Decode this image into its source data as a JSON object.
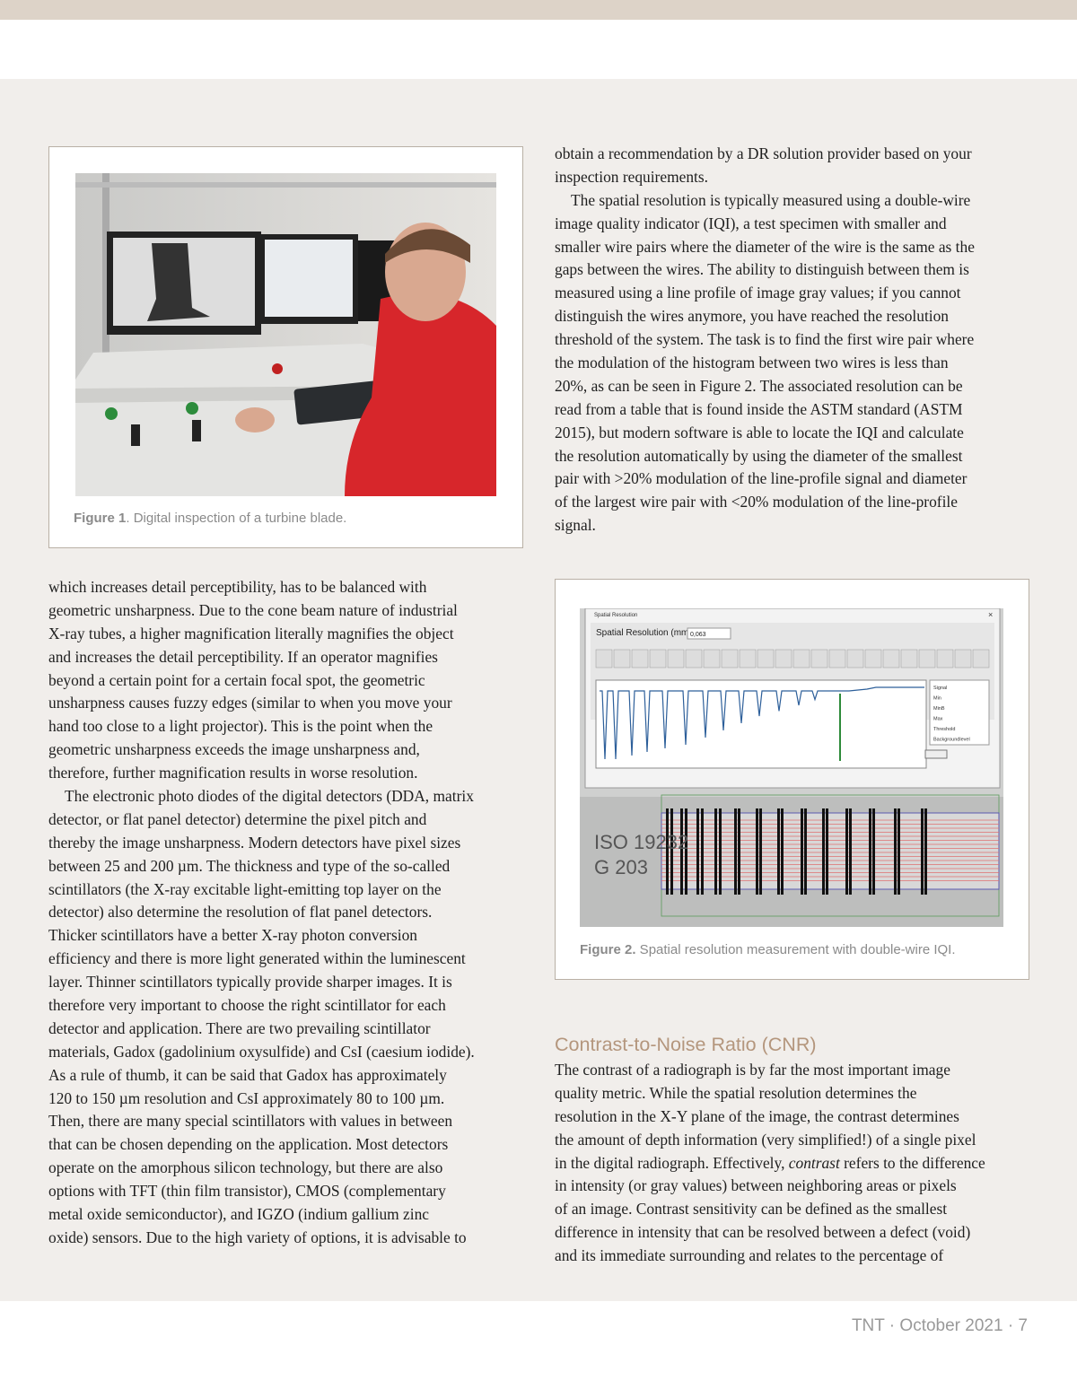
{
  "columns": {
    "left": {
      "paragraphs": [
        [
          "which increases detail perceptibility, has to be balanced with",
          "geometric unsharpness. Due to the cone beam nature of industrial",
          "X-ray tubes, a higher magnification literally magnifies the object",
          "and increases the detail perceptibility. If an operator magnifies",
          "beyond a certain point for a certain focal spot, the geometric",
          "unsharpness causes fuzzy edges (similar to when you move your",
          "hand too close to a light projector). This is the point when the",
          "geometric unsharpness exceeds the image unsharpness and,",
          "therefore, further magnification results in worse resolution."
        ],
        [
          "The electronic photo diodes of the digital detectors (DDA, matrix",
          "detector, or flat panel detector) determine the pixel pitch and",
          "thereby the image unsharpness. Modern detectors have pixel sizes",
          "between 25 and 200 µm. The thickness and type of the so-called",
          "scintillators (the X-ray excitable light-emitting top layer on the",
          "detector) also determine the resolution of flat panel detectors.",
          "Thicker scintillators have a better X-ray photon conversion",
          "efficiency and there is more light generated within the luminescent",
          "layer. Thinner scintillators typically provide sharper images. It is",
          "therefore very important to choose the right scintillator for each",
          "detector and application. There are two prevailing scintillator",
          "materials, Gadox (gadolinium oxysulfide) and CsI (caesium iodide).",
          "As a rule of thumb, it can be said that Gadox has approximately",
          "120 to 150 µm resolution and CsI approximately 80 to 100 µm.",
          "Then, there are many special scintillators with values in between",
          "that can be chosen depending on the application. Most detectors",
          "operate on the amorphous silicon technology, but there are also",
          "options with TFT (thin film transistor), CMOS (complementary",
          "metal oxide semiconductor), and IGZO (indium gallium zinc",
          "oxide) sensors. Due to the high variety of options, it is advisable to"
        ]
      ]
    },
    "right_top": {
      "paragraphs": [
        [
          "obtain a recommendation by a DR solution provider based on your",
          "inspection requirements."
        ],
        [
          "The spatial resolution is typically measured using a double-wire",
          "image quality indicator (IQI), a test specimen with smaller and",
          "smaller wire pairs where the diameter of the wire is the same as the",
          "gaps between the wires. The ability to distinguish between them is",
          "measured using a line profile of image gray values; if you cannot",
          "distinguish the wires anymore, you have reached the resolution",
          "threshold of the system. The task is to find the first wire pair where",
          "the modulation of the histogram between two wires is less than",
          "20%, as can be seen in Figure 2. The associated resolution can be",
          "read from a table that is found inside the ASTM standard (ASTM",
          "2015), but modern software is able to locate the IQI and calculate",
          "the resolution automatically by using the diameter of the smallest",
          "pair with >20% modulation of the line-profile signal and diameter",
          "of the largest wire pair with <20% modulation of the line-profile",
          "signal."
        ]
      ]
    },
    "right_bottom": {
      "heading": "Contrast-to-Noise Ratio (CNR)",
      "paragraphs": [
        [
          "The contrast of a radiograph is by far the most important image",
          "quality metric. While the spatial resolution determines the",
          "resolution in the X-Y plane of the image, the contrast determines",
          "the amount of depth information (very simplified!) of a single pixel",
          [
            "in the digital radiograph. Effectively, ",
            "contrast",
            " refers to the difference"
          ],
          "in intensity (or gray values) between neighboring areas or pixels",
          "of an image. Contrast sensitivity can be defined as the smallest",
          "difference in intensity that can be resolved between a defect (void)",
          "and its immediate surrounding and relates to the percentage of"
        ]
      ]
    }
  },
  "figure1": {
    "label": "Figure 1",
    "caption": ". Digital inspection of a turbine blade."
  },
  "figure2": {
    "label": "Figure 2.",
    "caption": " Spatial resolution measurement with double-wire IQI.",
    "window_title": "Spatial Resolution",
    "field_label": "Spatial Resolution (mm)",
    "field_value": "0,063",
    "legend": [
      "Signal",
      "Min",
      "MinB",
      "Max",
      "Threshold",
      "Backgroundlevel"
    ],
    "iqi_text": [
      "ISO 19232",
      "G 203"
    ]
  },
  "footer": "TNT · October 2021 · 7"
}
